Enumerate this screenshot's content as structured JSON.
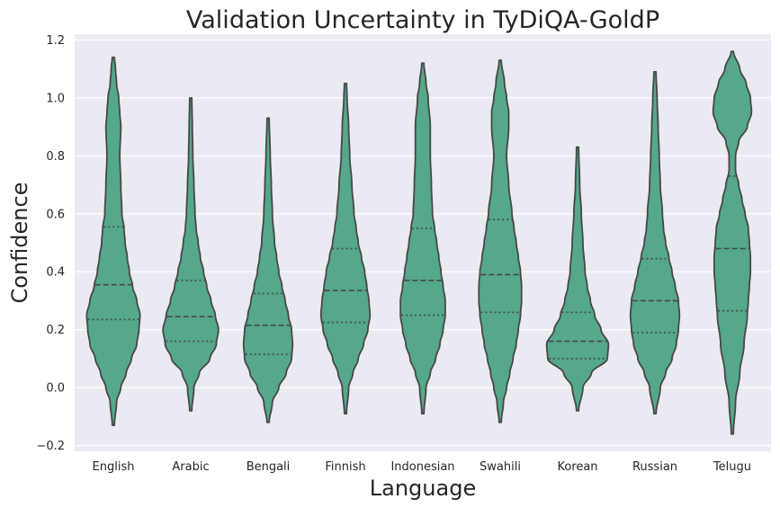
{
  "chart_data": {
    "type": "violin",
    "title": "Validation Uncertainty in TyDiQA-GoldP",
    "xlabel": "Language",
    "ylabel": "Confidence",
    "ylim": [
      -0.22,
      1.22
    ],
    "yticks": [
      -0.2,
      0.0,
      0.2,
      0.4,
      0.6,
      0.8,
      1.0,
      1.2
    ],
    "ytick_labels": [
      "−0.2",
      "0.0",
      "0.2",
      "0.4",
      "0.6",
      "0.8",
      "1.0",
      "1.2"
    ],
    "fill_color": "#55a88a",
    "edge_color": "#474747",
    "grid": true,
    "categories": [
      "English",
      "Arabic",
      "Bengali",
      "Finnish",
      "Indonesian",
      "Swahili",
      "Korean",
      "Russian",
      "Telugu"
    ],
    "series": [
      {
        "name": "English",
        "min": -0.13,
        "max": 1.14,
        "q1": 0.235,
        "median": 0.355,
        "q3": 0.555,
        "profile": [
          [
            -0.13,
            0.01
          ],
          [
            -0.05,
            0.03
          ],
          [
            0.0,
            0.07
          ],
          [
            0.05,
            0.12
          ],
          [
            0.1,
            0.17
          ],
          [
            0.15,
            0.22
          ],
          [
            0.2,
            0.24
          ],
          [
            0.25,
            0.25
          ],
          [
            0.3,
            0.22
          ],
          [
            0.35,
            0.18
          ],
          [
            0.4,
            0.15
          ],
          [
            0.45,
            0.13
          ],
          [
            0.5,
            0.11
          ],
          [
            0.55,
            0.1
          ],
          [
            0.6,
            0.08
          ],
          [
            0.7,
            0.07
          ],
          [
            0.8,
            0.06
          ],
          [
            0.9,
            0.07
          ],
          [
            0.95,
            0.06
          ],
          [
            1.0,
            0.05
          ],
          [
            1.05,
            0.03
          ],
          [
            1.1,
            0.02
          ],
          [
            1.14,
            0.01
          ]
        ]
      },
      {
        "name": "Arabic",
        "min": -0.08,
        "max": 1.0,
        "q1": 0.16,
        "median": 0.245,
        "q3": 0.37,
        "profile": [
          [
            -0.08,
            0.01
          ],
          [
            0.0,
            0.03
          ],
          [
            0.05,
            0.08
          ],
          [
            0.1,
            0.18
          ],
          [
            0.15,
            0.24
          ],
          [
            0.2,
            0.26
          ],
          [
            0.25,
            0.23
          ],
          [
            0.3,
            0.19
          ],
          [
            0.35,
            0.15
          ],
          [
            0.4,
            0.12
          ],
          [
            0.45,
            0.09
          ],
          [
            0.5,
            0.07
          ],
          [
            0.55,
            0.05
          ],
          [
            0.6,
            0.04
          ],
          [
            0.7,
            0.03
          ],
          [
            0.8,
            0.02
          ],
          [
            0.9,
            0.015
          ],
          [
            1.0,
            0.01
          ]
        ]
      },
      {
        "name": "Bengali",
        "min": -0.12,
        "max": 0.93,
        "q1": 0.115,
        "median": 0.215,
        "q3": 0.325,
        "profile": [
          [
            -0.12,
            0.01
          ],
          [
            -0.05,
            0.04
          ],
          [
            0.0,
            0.1
          ],
          [
            0.05,
            0.17
          ],
          [
            0.1,
            0.22
          ],
          [
            0.15,
            0.23
          ],
          [
            0.2,
            0.22
          ],
          [
            0.25,
            0.19
          ],
          [
            0.3,
            0.16
          ],
          [
            0.35,
            0.13
          ],
          [
            0.4,
            0.1
          ],
          [
            0.45,
            0.08
          ],
          [
            0.5,
            0.06
          ],
          [
            0.6,
            0.04
          ],
          [
            0.7,
            0.03
          ],
          [
            0.8,
            0.02
          ],
          [
            0.93,
            0.01
          ]
        ]
      },
      {
        "name": "Finnish",
        "min": -0.09,
        "max": 1.05,
        "q1": 0.225,
        "median": 0.335,
        "q3": 0.48,
        "profile": [
          [
            -0.09,
            0.01
          ],
          [
            0.0,
            0.03
          ],
          [
            0.05,
            0.07
          ],
          [
            0.1,
            0.12
          ],
          [
            0.15,
            0.17
          ],
          [
            0.2,
            0.21
          ],
          [
            0.25,
            0.23
          ],
          [
            0.3,
            0.22
          ],
          [
            0.35,
            0.2
          ],
          [
            0.4,
            0.18
          ],
          [
            0.45,
            0.15
          ],
          [
            0.5,
            0.12
          ],
          [
            0.55,
            0.1
          ],
          [
            0.6,
            0.08
          ],
          [
            0.7,
            0.06
          ],
          [
            0.8,
            0.04
          ],
          [
            0.9,
            0.03
          ],
          [
            1.0,
            0.015
          ],
          [
            1.05,
            0.01
          ]
        ]
      },
      {
        "name": "Indonesian",
        "min": -0.09,
        "max": 1.12,
        "q1": 0.25,
        "median": 0.37,
        "q3": 0.55,
        "profile": [
          [
            -0.09,
            0.01
          ],
          [
            0.0,
            0.03
          ],
          [
            0.05,
            0.07
          ],
          [
            0.1,
            0.12
          ],
          [
            0.15,
            0.16
          ],
          [
            0.2,
            0.19
          ],
          [
            0.25,
            0.21
          ],
          [
            0.3,
            0.21
          ],
          [
            0.35,
            0.19
          ],
          [
            0.4,
            0.17
          ],
          [
            0.45,
            0.15
          ],
          [
            0.5,
            0.13
          ],
          [
            0.55,
            0.11
          ],
          [
            0.6,
            0.09
          ],
          [
            0.7,
            0.08
          ],
          [
            0.8,
            0.07
          ],
          [
            0.9,
            0.07
          ],
          [
            1.0,
            0.05
          ],
          [
            1.05,
            0.03
          ],
          [
            1.12,
            0.01
          ]
        ]
      },
      {
        "name": "Swahili",
        "min": -0.12,
        "max": 1.13,
        "q1": 0.26,
        "median": 0.39,
        "q3": 0.58,
        "profile": [
          [
            -0.12,
            0.01
          ],
          [
            -0.05,
            0.03
          ],
          [
            0.0,
            0.06
          ],
          [
            0.05,
            0.09
          ],
          [
            0.1,
            0.12
          ],
          [
            0.15,
            0.15
          ],
          [
            0.2,
            0.17
          ],
          [
            0.25,
            0.19
          ],
          [
            0.3,
            0.2
          ],
          [
            0.35,
            0.2
          ],
          [
            0.4,
            0.19
          ],
          [
            0.45,
            0.17
          ],
          [
            0.5,
            0.15
          ],
          [
            0.55,
            0.13
          ],
          [
            0.6,
            0.11
          ],
          [
            0.7,
            0.08
          ],
          [
            0.8,
            0.06
          ],
          [
            0.9,
            0.08
          ],
          [
            0.95,
            0.08
          ],
          [
            1.0,
            0.06
          ],
          [
            1.05,
            0.04
          ],
          [
            1.13,
            0.01
          ]
        ]
      },
      {
        "name": "Korean",
        "min": -0.08,
        "max": 0.83,
        "q1": 0.1,
        "median": 0.16,
        "q3": 0.26,
        "profile": [
          [
            -0.08,
            0.01
          ],
          [
            0.0,
            0.05
          ],
          [
            0.05,
            0.13
          ],
          [
            0.1,
            0.28
          ],
          [
            0.15,
            0.29
          ],
          [
            0.2,
            0.22
          ],
          [
            0.25,
            0.16
          ],
          [
            0.3,
            0.12
          ],
          [
            0.35,
            0.09
          ],
          [
            0.4,
            0.07
          ],
          [
            0.5,
            0.05
          ],
          [
            0.6,
            0.035
          ],
          [
            0.7,
            0.02
          ],
          [
            0.83,
            0.01
          ]
        ]
      },
      {
        "name": "Russian",
        "min": -0.09,
        "max": 1.09,
        "q1": 0.19,
        "median": 0.3,
        "q3": 0.445,
        "profile": [
          [
            -0.09,
            0.01
          ],
          [
            0.0,
            0.05
          ],
          [
            0.05,
            0.1
          ],
          [
            0.1,
            0.16
          ],
          [
            0.15,
            0.2
          ],
          [
            0.2,
            0.22
          ],
          [
            0.25,
            0.23
          ],
          [
            0.3,
            0.22
          ],
          [
            0.35,
            0.19
          ],
          [
            0.4,
            0.16
          ],
          [
            0.45,
            0.13
          ],
          [
            0.5,
            0.1
          ],
          [
            0.55,
            0.08
          ],
          [
            0.6,
            0.07
          ],
          [
            0.7,
            0.05
          ],
          [
            0.8,
            0.04
          ],
          [
            0.9,
            0.03
          ],
          [
            1.0,
            0.02
          ],
          [
            1.09,
            0.01
          ]
        ]
      },
      {
        "name": "Telugu",
        "min": -0.16,
        "max": 1.16,
        "q1": 0.265,
        "median": 0.48,
        "q3": 0.73,
        "profile": [
          [
            -0.16,
            0.01
          ],
          [
            -0.05,
            0.03
          ],
          [
            0.05,
            0.07
          ],
          [
            0.15,
            0.11
          ],
          [
            0.25,
            0.14
          ],
          [
            0.3,
            0.15
          ],
          [
            0.35,
            0.16
          ],
          [
            0.4,
            0.17
          ],
          [
            0.45,
            0.17
          ],
          [
            0.5,
            0.16
          ],
          [
            0.55,
            0.15
          ],
          [
            0.6,
            0.12
          ],
          [
            0.65,
            0.09
          ],
          [
            0.7,
            0.06
          ],
          [
            0.75,
            0.03
          ],
          [
            0.8,
            0.03
          ],
          [
            0.85,
            0.06
          ],
          [
            0.9,
            0.14
          ],
          [
            0.95,
            0.18
          ],
          [
            1.0,
            0.17
          ],
          [
            1.05,
            0.13
          ],
          [
            1.1,
            0.07
          ],
          [
            1.16,
            0.01
          ]
        ]
      }
    ]
  }
}
